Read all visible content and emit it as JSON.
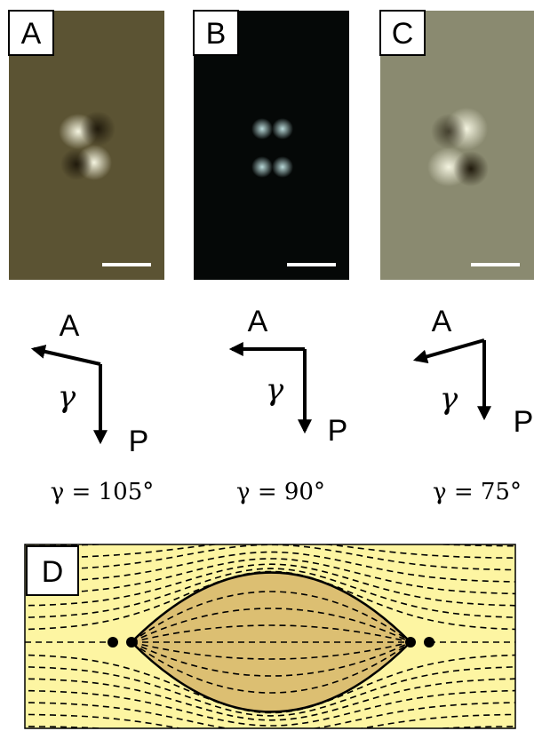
{
  "panels": [
    {
      "label": "A",
      "analyzer_label": "A",
      "polarizer_label": "P",
      "angle_symbol": "γ",
      "caption": "γ = 105°"
    },
    {
      "label": "B",
      "analyzer_label": "A",
      "polarizer_label": "P",
      "angle_symbol": "γ",
      "caption": "γ = 90°"
    },
    {
      "label": "C",
      "analyzer_label": "A",
      "polarizer_label": "P",
      "angle_symbol": "γ",
      "caption": "γ = 75°"
    }
  ],
  "diagram": {
    "label": "D"
  }
}
